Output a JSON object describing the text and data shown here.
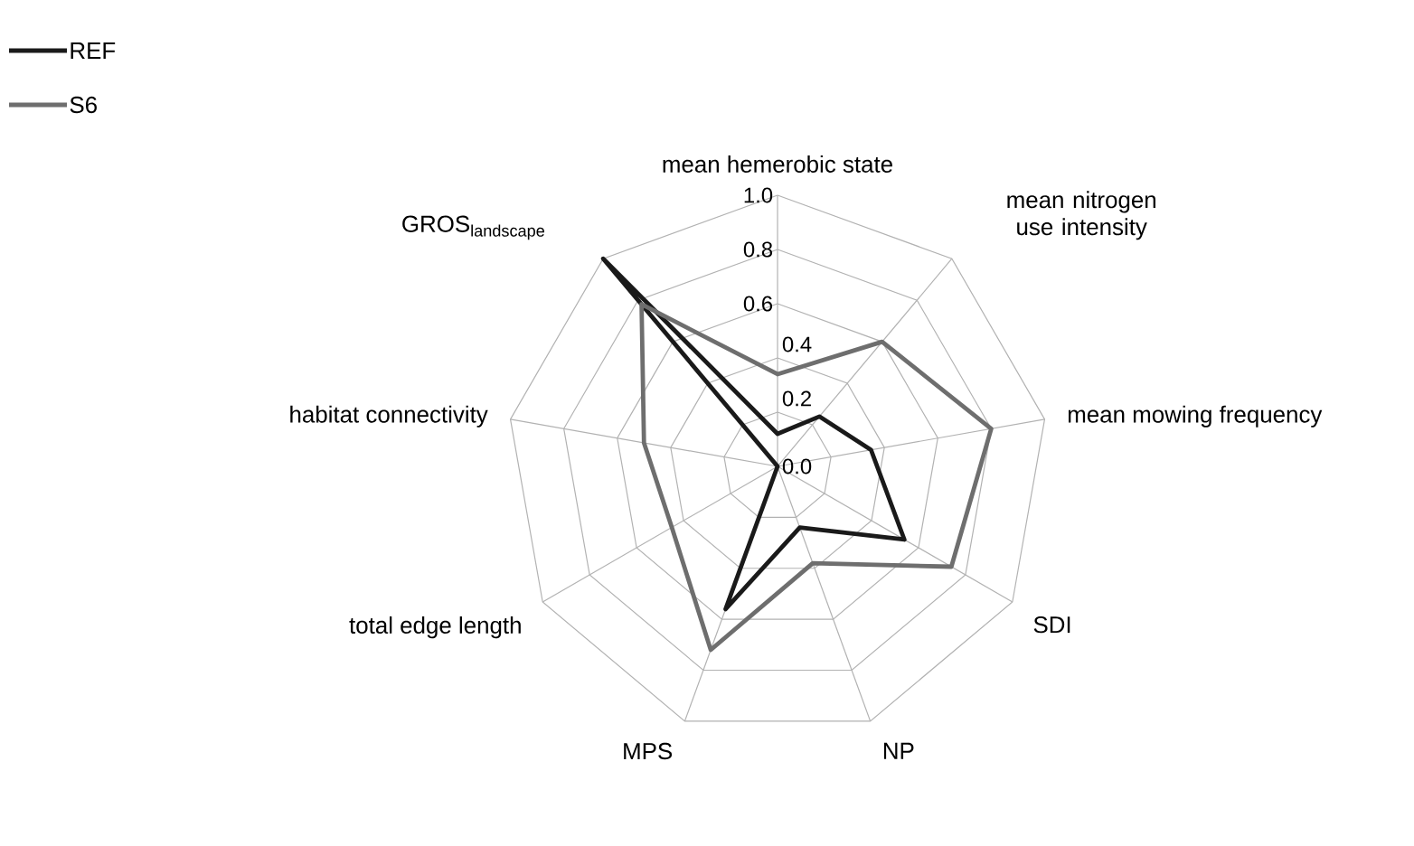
{
  "chart_data": {
    "type": "radar",
    "categories": [
      "mean hemerobic state",
      "mean nitrogen use intensity",
      "mean mowing frequency",
      "SDI",
      "NP",
      "MPS",
      "total edge length",
      "habitat connectivity",
      "\\text{GROS}_{\\text{landscape}}"
    ],
    "series": [
      {
        "name": "REF",
        "color": "#1a1a1a",
        "values": [
          0.12,
          0.24,
          0.35,
          0.54,
          0.24,
          0.56,
          0.0,
          0.0,
          1.0
        ]
      },
      {
        "name": "S6",
        "color": "#6e6e6e",
        "values": [
          0.34,
          0.6,
          0.8,
          0.74,
          0.38,
          0.72,
          0.45,
          0.5,
          0.78
        ]
      }
    ],
    "ylim": [
      0,
      1
    ],
    "yticks": [
      {
        "value": 0,
        "label": "0.0"
      },
      {
        "value": 0.2,
        "label": "0.2"
      },
      {
        "value": 0.4,
        "label": "0.4"
      },
      {
        "value": 0.6,
        "label": "0.6"
      },
      {
        "value": 0.8,
        "label": "0.8"
      },
      {
        "value": 1,
        "label": "1.0"
      }
    ],
    "grid": true,
    "legend": "top left",
    "line_style": "solid",
    "marker": "none"
  }
}
